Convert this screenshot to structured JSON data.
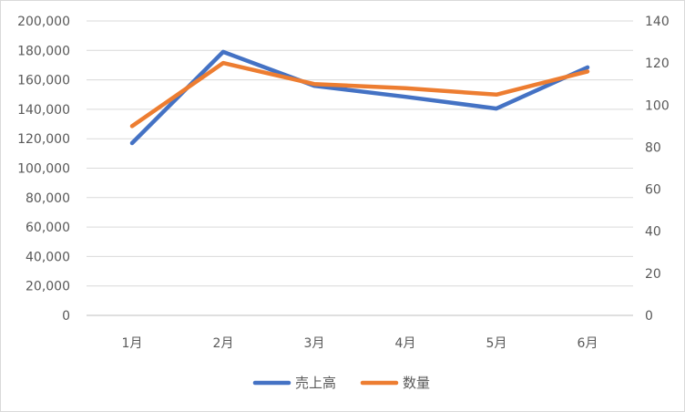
{
  "chart_data": {
    "type": "line",
    "categories": [
      "1月",
      "2月",
      "3月",
      "4月",
      "5月",
      "6月"
    ],
    "series": [
      {
        "name": "売上高",
        "axis": "left",
        "color": "#4472C4",
        "values": [
          117000,
          179000,
          156000,
          148500,
          140500,
          168500
        ]
      },
      {
        "name": "数量",
        "axis": "right",
        "color": "#ED7D31",
        "values": [
          90,
          120,
          110,
          108,
          105,
          116
        ]
      }
    ],
    "y_left": {
      "min": 0,
      "max": 200000,
      "step": 20000,
      "tick_labels": [
        "0",
        "20,000",
        "40,000",
        "60,000",
        "80,000",
        "100,000",
        "120,000",
        "140,000",
        "160,000",
        "180,000",
        "200,000"
      ]
    },
    "y_right": {
      "min": 0,
      "max": 140,
      "step": 20,
      "tick_labels": [
        "0",
        "20",
        "40",
        "60",
        "80",
        "100",
        "120",
        "140"
      ]
    },
    "grid": true,
    "legend": "bottom",
    "title": "",
    "xlabel": "",
    "ylabel": ""
  }
}
